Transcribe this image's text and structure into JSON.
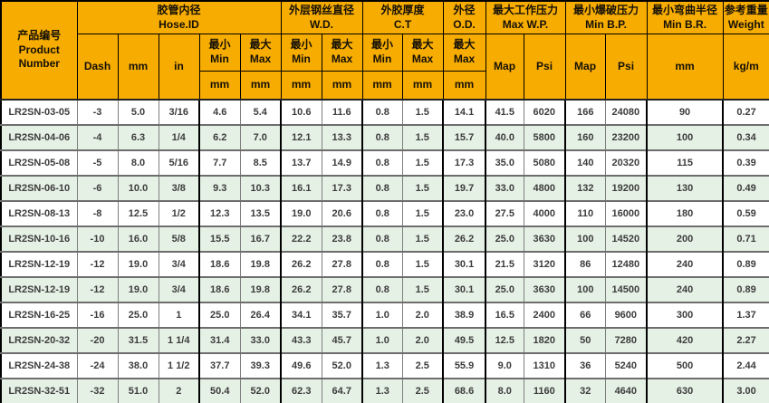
{
  "colors": {
    "header_bg": "#F6AC00",
    "alt_row_bg": "#E6F1E6",
    "border_dark": "#000000",
    "border_gray": "#7E7E7E",
    "data_text": "#3C3C3C"
  },
  "table": {
    "header": {
      "product": {
        "zh": "产品编号",
        "en1": "Product",
        "en2": "Number"
      },
      "groups": [
        {
          "zh": "胶管内径",
          "en": "Hose.ID"
        },
        {
          "zh": "外层钢丝直径",
          "en": "W.D."
        },
        {
          "zh": "外胶厚度",
          "en": "C.T"
        },
        {
          "zh": "外径",
          "en": "O.D."
        },
        {
          "zh": "最大工作压力",
          "en": "Max W.P."
        },
        {
          "zh": "最小爆破压力",
          "en": "Min B.P."
        },
        {
          "zh": "最小弯曲半径",
          "en": "Min B.R."
        },
        {
          "zh": "参考重量",
          "en": "Weight"
        }
      ],
      "sub": {
        "dash": "Dash",
        "mm": "mm",
        "in": "in",
        "min_zh": "最小",
        "min_en": "Min",
        "max_zh": "最大",
        "max_en": "Max",
        "map": "Map",
        "psi": "Psi",
        "unit_mm": "mm",
        "kgm": "kg/m"
      }
    },
    "columns": [
      "product",
      "dash",
      "id_mm",
      "id_in",
      "id_min_mm",
      "id_max_mm",
      "wd_min_mm",
      "wd_max_mm",
      "ct_min_mm",
      "ct_max_mm",
      "od_max_mm",
      "wp_map",
      "wp_psi",
      "bp_map",
      "bp_psi",
      "br_mm",
      "weight_kgm"
    ],
    "rows": [
      [
        "LR2SN-03-05",
        "-3",
        "5.0",
        "3/16",
        "4.6",
        "5.4",
        "10.6",
        "11.6",
        "0.8",
        "1.5",
        "14.1",
        "41.5",
        "6020",
        "166",
        "24080",
        "90",
        "0.27"
      ],
      [
        "LR2SN-04-06",
        "-4",
        "6.3",
        "1/4",
        "6.2",
        "7.0",
        "12.1",
        "13.3",
        "0.8",
        "1.5",
        "15.7",
        "40.0",
        "5800",
        "160",
        "23200",
        "100",
        "0.34"
      ],
      [
        "LR2SN-05-08",
        "-5",
        "8.0",
        "5/16",
        "7.7",
        "8.5",
        "13.7",
        "14.9",
        "0.8",
        "1.5",
        "17.3",
        "35.0",
        "5080",
        "140",
        "20320",
        "115",
        "0.39"
      ],
      [
        "LR2SN-06-10",
        "-6",
        "10.0",
        "3/8",
        "9.3",
        "10.3",
        "16.1",
        "17.3",
        "0.8",
        "1.5",
        "19.7",
        "33.0",
        "4800",
        "132",
        "19200",
        "130",
        "0.49"
      ],
      [
        "LR2SN-08-13",
        "-8",
        "12.5",
        "1/2",
        "12.3",
        "13.5",
        "19.0",
        "20.6",
        "0.8",
        "1.5",
        "23.0",
        "27.5",
        "4000",
        "110",
        "16000",
        "180",
        "0.59"
      ],
      [
        "LR2SN-10-16",
        "-10",
        "16.0",
        "5/8",
        "15.5",
        "16.7",
        "22.2",
        "23.8",
        "0.8",
        "1.5",
        "26.2",
        "25.0",
        "3630",
        "100",
        "14520",
        "200",
        "0.71"
      ],
      [
        "LR2SN-12-19",
        "-12",
        "19.0",
        "3/4",
        "18.6",
        "19.8",
        "26.2",
        "27.8",
        "0.8",
        "1.5",
        "30.1",
        "21.5",
        "3120",
        "86",
        "12480",
        "240",
        "0.89"
      ],
      [
        "LR2SN-12-19",
        "-12",
        "19.0",
        "3/4",
        "18.6",
        "19.8",
        "26.2",
        "27.8",
        "0.8",
        "1.5",
        "30.1",
        "25.0",
        "3630",
        "100",
        "14500",
        "240",
        "0.89"
      ],
      [
        "LR2SN-16-25",
        "-16",
        "25.0",
        "1",
        "25.0",
        "26.4",
        "34.1",
        "35.7",
        "1.0",
        "2.0",
        "38.9",
        "16.5",
        "2400",
        "66",
        "9600",
        "300",
        "1.37"
      ],
      [
        "LR2SN-20-32",
        "-20",
        "31.5",
        "1 1/4",
        "31.4",
        "33.0",
        "43.3",
        "45.7",
        "1.0",
        "2.0",
        "49.5",
        "12.5",
        "1820",
        "50",
        "7280",
        "420",
        "2.27"
      ],
      [
        "LR2SN-24-38",
        "-24",
        "38.0",
        "1 1/2",
        "37.7",
        "39.3",
        "49.6",
        "52.0",
        "1.3",
        "2.5",
        "55.9",
        "9.0",
        "1310",
        "36",
        "5240",
        "500",
        "2.44"
      ],
      [
        "LR2SN-32-51",
        "-32",
        "51.0",
        "2",
        "50.4",
        "52.0",
        "62.3",
        "64.7",
        "1.3",
        "2.5",
        "68.6",
        "8.0",
        "1160",
        "32",
        "4640",
        "630",
        "3.00"
      ]
    ]
  }
}
